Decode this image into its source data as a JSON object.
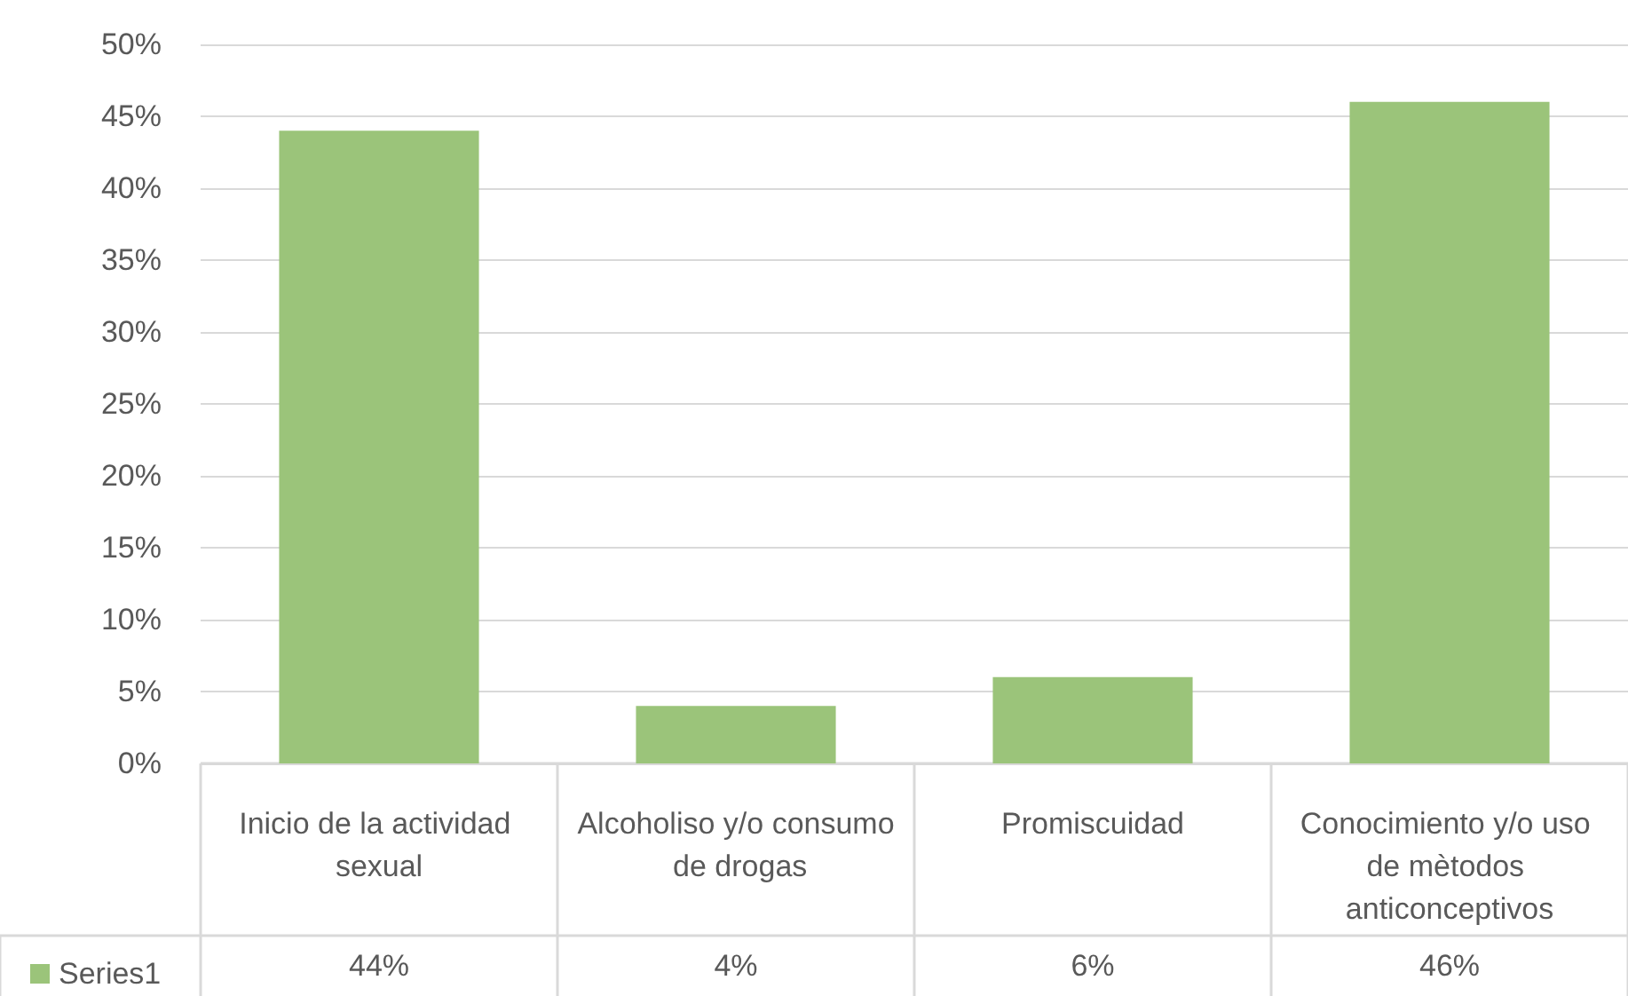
{
  "chart_data": {
    "type": "bar",
    "categories": [
      "Inicio de la actividad sexual",
      "Alcoholiso y/o consumo de drogas",
      "Promiscuidad",
      "Conocimiento y/o uso de mètodos anticonceptivos"
    ],
    "series": [
      {
        "name": "Series1",
        "color": "#9bc47a",
        "values": [
          44,
          4,
          6,
          46
        ],
        "value_labels": [
          "44%",
          "4%",
          "6%",
          "46%"
        ]
      }
    ],
    "ylim": [
      0,
      50
    ],
    "yticks": [
      {
        "value": 0,
        "label": "0%"
      },
      {
        "value": 5,
        "label": "5%"
      },
      {
        "value": 10,
        "label": "10%"
      },
      {
        "value": 15,
        "label": "15%"
      },
      {
        "value": 20,
        "label": "20%"
      },
      {
        "value": 25,
        "label": "25%"
      },
      {
        "value": 30,
        "label": "30%"
      },
      {
        "value": 35,
        "label": "35%"
      },
      {
        "value": 40,
        "label": "40%"
      },
      {
        "value": 45,
        "label": "45%"
      },
      {
        "value": 50,
        "label": "50%"
      }
    ],
    "grid": true,
    "legend": "bottom left"
  }
}
